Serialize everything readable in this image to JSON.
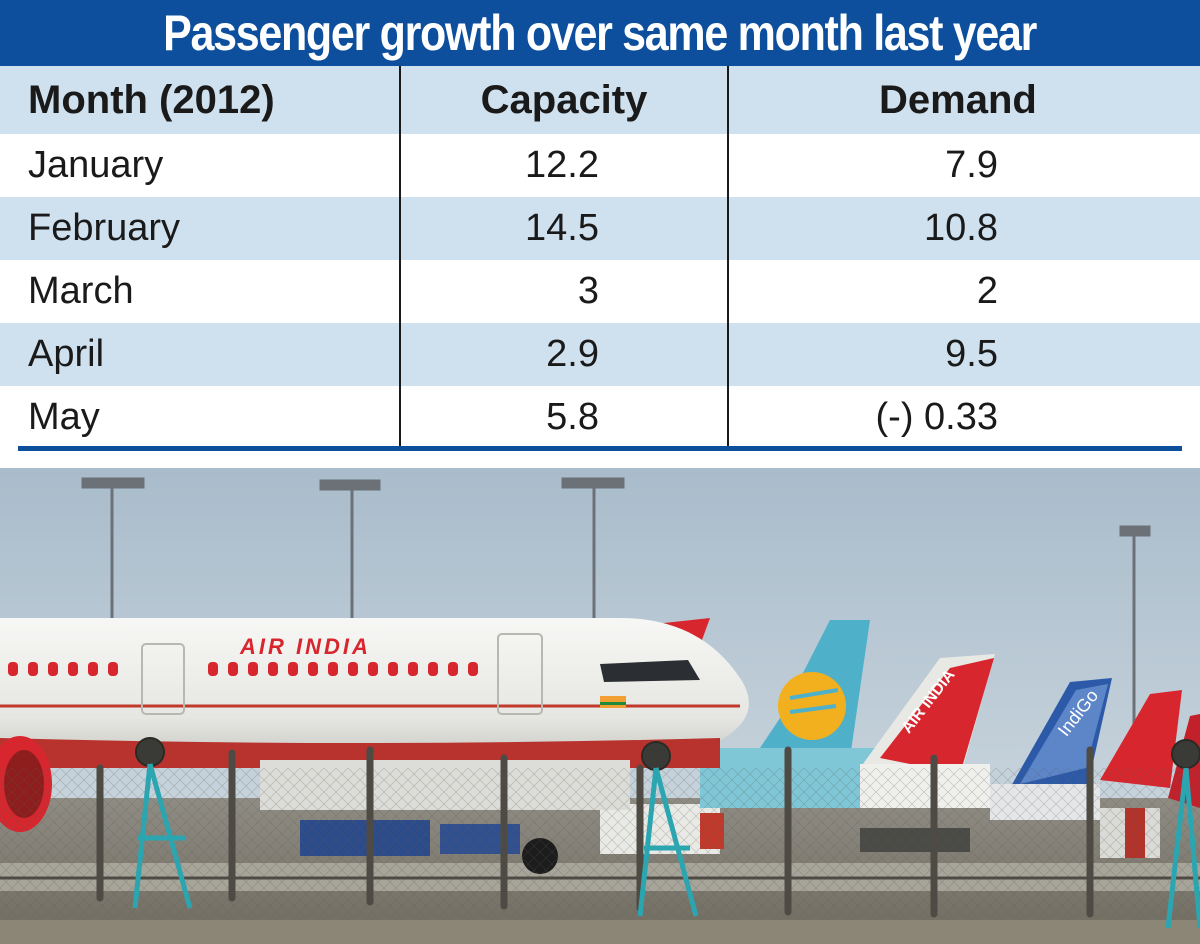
{
  "title": "Passenger growth over same month last year",
  "table": {
    "headers": [
      "Month (2012)",
      "Capacity",
      "Demand"
    ],
    "rows": [
      {
        "month": "January",
        "capacity": "12.2",
        "demand": "7.9"
      },
      {
        "month": "February",
        "capacity": "14.5",
        "demand": "10.8"
      },
      {
        "month": "March",
        "capacity": "3",
        "demand": "2"
      },
      {
        "month": "April",
        "capacity": "2.9",
        "demand": "9.5"
      },
      {
        "month": "May",
        "capacity": "5.8",
        "demand": "(-) 0.33"
      }
    ]
  },
  "photo": {
    "main_aircraft_livery": "AIR INDIA",
    "tail_text_air_india": "AIR INDIA",
    "tail_text_indigo": "IndiGo",
    "colors": {
      "title_bar": "#0d4f9c",
      "row_shade": "#cfe0ee",
      "air_india_red": "#d7262e",
      "jet_airways_teal": "#4fb0c9",
      "jet_airways_gold": "#f2b01e",
      "indigo_blue": "#2d5aa8"
    }
  }
}
